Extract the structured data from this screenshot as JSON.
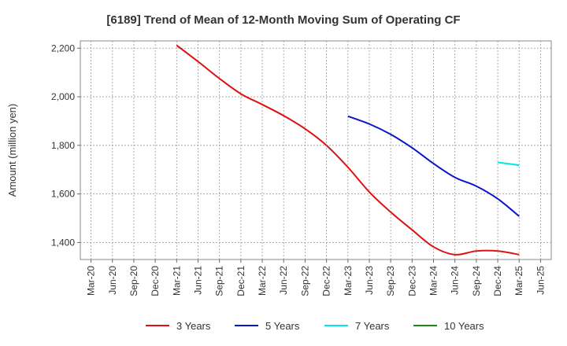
{
  "chart_data": {
    "type": "line",
    "title": "[6189]  Trend of Mean of 12-Month Moving Sum of Operating CF",
    "xlabel": "",
    "ylabel": "Amount (million yen)",
    "categories": [
      "Mar-20",
      "Jun-20",
      "Sep-20",
      "Dec-20",
      "Mar-21",
      "Jun-21",
      "Sep-21",
      "Dec-21",
      "Mar-22",
      "Jun-22",
      "Sep-22",
      "Dec-22",
      "Mar-23",
      "Jun-23",
      "Sep-23",
      "Dec-23",
      "Mar-24",
      "Jun-24",
      "Sep-24",
      "Dec-24",
      "Mar-25",
      "Jun-25"
    ],
    "ylim": [
      1330,
      2230
    ],
    "yticks": [
      1400,
      1600,
      1800,
      2000,
      2200
    ],
    "ytick_labels": [
      "1,400",
      "1,600",
      "1,800",
      "2,000",
      "2,200"
    ],
    "grid": true,
    "series": [
      {
        "name": "3 Years",
        "color": "#dd1111",
        "values": [
          null,
          null,
          null,
          null,
          2212,
          2145,
          2075,
          2012,
          1968,
          1922,
          1868,
          1800,
          1710,
          1608,
          1525,
          1452,
          1382,
          1350,
          1365,
          1365,
          1350,
          null
        ]
      },
      {
        "name": "5 Years",
        "color": "#0a14c8",
        "values": [
          null,
          null,
          null,
          null,
          null,
          null,
          null,
          null,
          null,
          null,
          null,
          null,
          1920,
          1888,
          1845,
          1790,
          1725,
          1668,
          1632,
          1580,
          1508,
          null
        ]
      },
      {
        "name": "7 Years",
        "color": "#00e6e6",
        "values": [
          null,
          null,
          null,
          null,
          null,
          null,
          null,
          null,
          null,
          null,
          null,
          null,
          null,
          null,
          null,
          null,
          null,
          null,
          null,
          1730,
          1718,
          null
        ]
      },
      {
        "name": "10 Years",
        "color": "#1a8a1a",
        "values": [
          null,
          null,
          null,
          null,
          null,
          null,
          null,
          null,
          null,
          null,
          null,
          null,
          null,
          null,
          null,
          null,
          null,
          null,
          null,
          null,
          null,
          null
        ]
      }
    ],
    "legend_position": "bottom-center"
  }
}
